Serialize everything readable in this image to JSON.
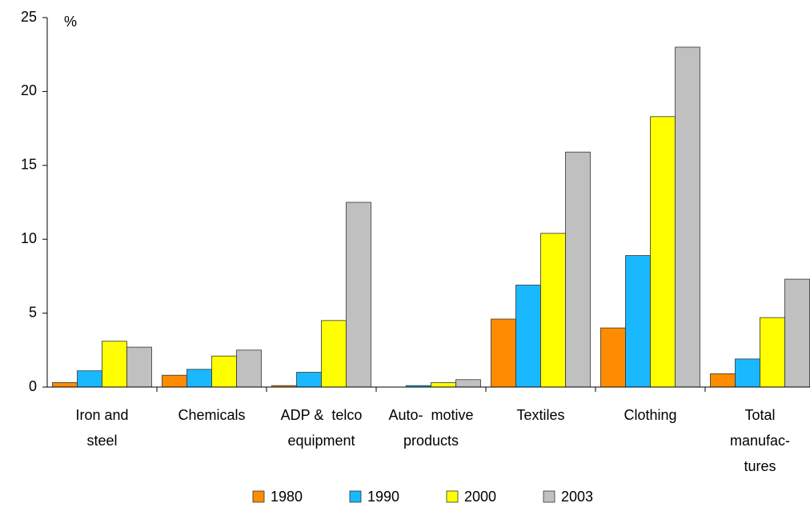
{
  "chart_data": {
    "type": "bar",
    "y_unit_label": "%",
    "categories": [
      [
        "Iron and",
        "steel"
      ],
      [
        "Chemicals"
      ],
      [
        "ADP &  telco",
        "equipment"
      ],
      [
        "Auto-  motive",
        "products"
      ],
      [
        "Textiles"
      ],
      [
        "Clothing"
      ],
      [
        "Total",
        "manufac-",
        "tures"
      ]
    ],
    "series": [
      {
        "name": "1980",
        "color": "#ff8c00",
        "values": [
          0.3,
          0.8,
          0.1,
          0,
          4.6,
          4.0,
          0.9
        ]
      },
      {
        "name": "1990",
        "color": "#1ab8ff",
        "values": [
          1.1,
          1.2,
          1.0,
          0.1,
          6.9,
          8.9,
          1.9
        ]
      },
      {
        "name": "2000",
        "color": "#ffff00",
        "values": [
          3.1,
          2.1,
          4.5,
          0.3,
          10.4,
          18.3,
          4.7
        ]
      },
      {
        "name": "2003",
        "color": "#c0c0c0",
        "values": [
          2.7,
          2.5,
          12.5,
          0.5,
          15.9,
          23.0,
          7.3
        ]
      }
    ],
    "ylim": [
      0,
      25
    ],
    "yticks": [
      0,
      5,
      10,
      15,
      20,
      25
    ],
    "legend": "bottom"
  }
}
